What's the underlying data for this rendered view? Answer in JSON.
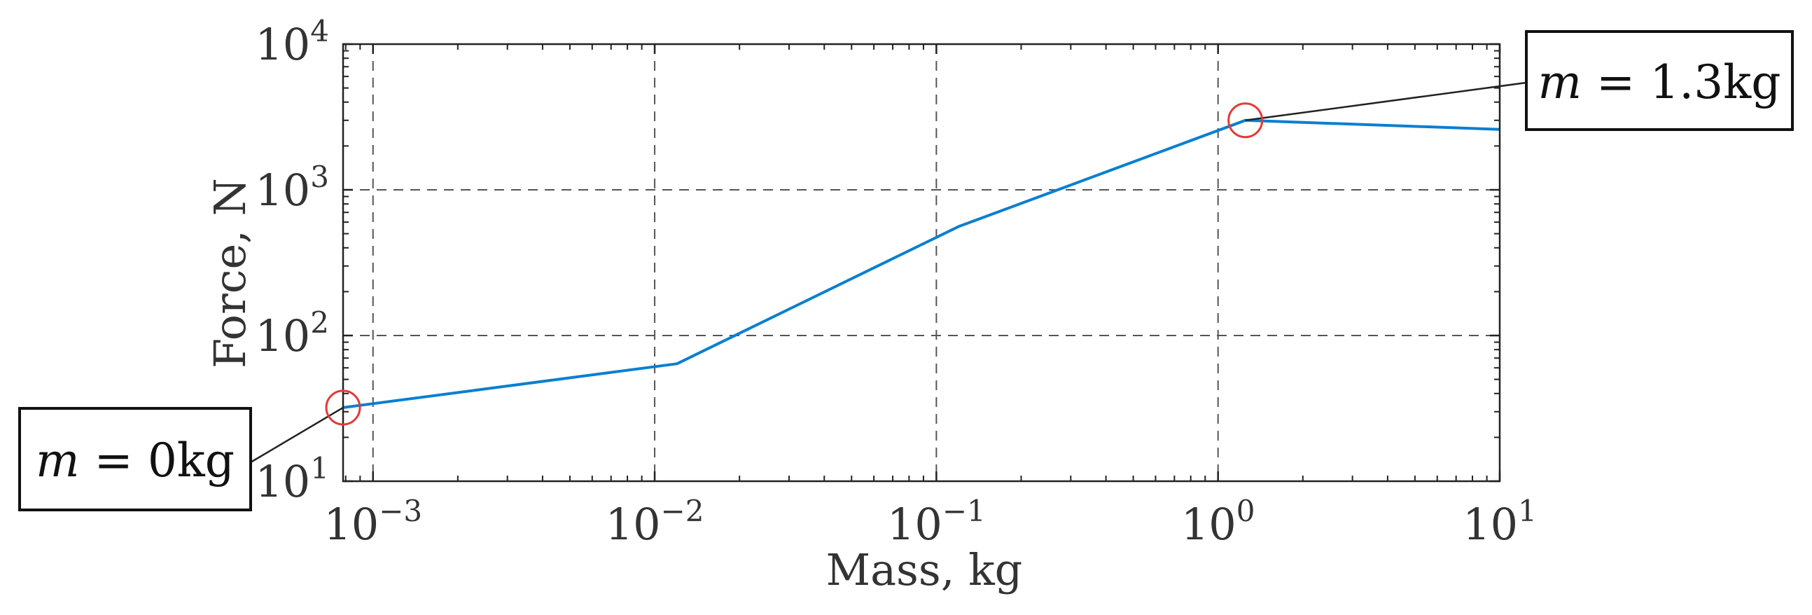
{
  "chart_data": {
    "type": "line",
    "xscale": "log",
    "yscale": "log",
    "title": "",
    "xlabel": "Mass, kg",
    "ylabel": "Force, N",
    "xlim": [
      0.000783,
      10
    ],
    "ylim": [
      10,
      10000
    ],
    "grid": true,
    "x_ticks": [
      {
        "value": 0.001,
        "base": "10",
        "exp": "−3"
      },
      {
        "value": 0.01,
        "base": "10",
        "exp": "−2"
      },
      {
        "value": 0.1,
        "base": "10",
        "exp": "−1"
      },
      {
        "value": 1,
        "base": "10",
        "exp": "0"
      },
      {
        "value": 10,
        "base": "10",
        "exp": "1"
      }
    ],
    "y_ticks": [
      {
        "value": 10,
        "base": "10",
        "exp": "1"
      },
      {
        "value": 100,
        "base": "10",
        "exp": "2"
      },
      {
        "value": 1000,
        "base": "10",
        "exp": "3"
      },
      {
        "value": 10000,
        "base": "10",
        "exp": "4"
      }
    ],
    "series": [
      {
        "name": "Force",
        "color": "#0a7fd0",
        "x": [
          0.000783,
          0.012,
          0.12,
          1.25,
          10
        ],
        "y": [
          32,
          64,
          560,
          3000,
          2600
        ]
      }
    ],
    "annotations": [
      {
        "name": "start",
        "var": "m",
        "eq": " = ",
        "value": "0kg",
        "x": 0.000783,
        "y": 32,
        "circle_color": "#e53935"
      },
      {
        "name": "peak",
        "var": "m",
        "eq": " = ",
        "value": "1.3kg",
        "x": 1.25,
        "y": 3000,
        "circle_color": "#e53935"
      }
    ]
  }
}
